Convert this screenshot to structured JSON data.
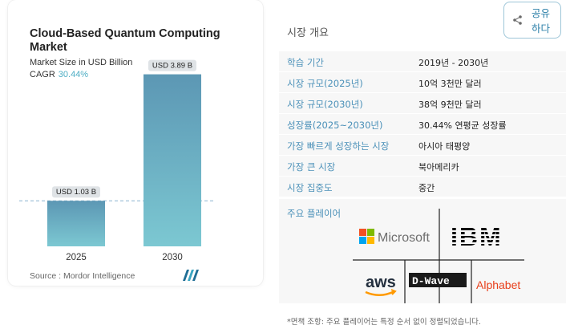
{
  "chart_card": {
    "title": "Cloud-Based Quantum Computing Market",
    "subtitle": "Market Size in USD Billion",
    "cagr_label": "CAGR",
    "cagr_value": "30.44%",
    "source": "Source : Mordor Intelligence",
    "logo_name": "mordor-intelligence-logo"
  },
  "chart_data": {
    "type": "bar",
    "categories": [
      "2025",
      "2030"
    ],
    "values": [
      1.03,
      3.89
    ],
    "data_labels": [
      "USD 1.03 B",
      "USD 3.89 B"
    ],
    "title": "Cloud-Based Quantum Computing Market",
    "ylabel": "Market Size in USD Billion",
    "ylim": [
      0,
      4.3
    ],
    "grid": false,
    "bar_color_top": "#5c97b4",
    "bar_color_bottom": "#7cc8d2",
    "reference_line": "dashed at 2025 value"
  },
  "overview": {
    "title": "시장 개요",
    "share_label": "공유하다",
    "share_icon": "share-icon",
    "rows": [
      {
        "key": "학습 기간",
        "value": "2019년 - 2030년"
      },
      {
        "key": "시장 규모(2025년)",
        "value": "10억 3천만 달러"
      },
      {
        "key": "시장 규모(2030년)",
        "value": "38억 9천만 달러"
      },
      {
        "key": "성장률(2025~2030년)",
        "value": "30.44% 연평균 성장률"
      },
      {
        "key": "가장 빠르게 성장하는 시장",
        "value": "아시아 태평양"
      },
      {
        "key": "가장 큰 시장",
        "value": "북아메리카"
      },
      {
        "key": "시장 집중도",
        "value": "중간"
      }
    ],
    "players_title": "주요 플레이어",
    "players": [
      "Microsoft",
      "IBM",
      "aws",
      "D-Wave",
      "Alphabet"
    ],
    "disclaimer": "*면책 조항: 주요 플레이어는 특정 순서 없이 정렬되었습니다."
  },
  "colors": {
    "accent_blue": "#4a90b8",
    "cagr_teal": "#4eaec4",
    "row_bg": "#f7f7f7",
    "alphabet_red": "#e8401c"
  }
}
